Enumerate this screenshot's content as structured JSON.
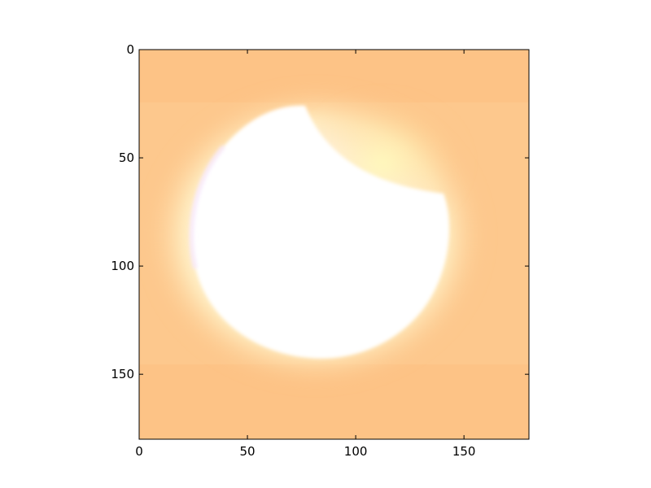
{
  "axes": {
    "x_ticks": [
      0,
      50,
      100,
      150
    ],
    "y_ticks": [
      0,
      50,
      100,
      150
    ],
    "x_range": [
      0,
      180
    ],
    "y_range": [
      0,
      180
    ],
    "y_inverted": true
  },
  "image": {
    "description_colors": {
      "background": "#fdc386",
      "glow": "#fff6d0",
      "core": "#ffffff"
    }
  }
}
